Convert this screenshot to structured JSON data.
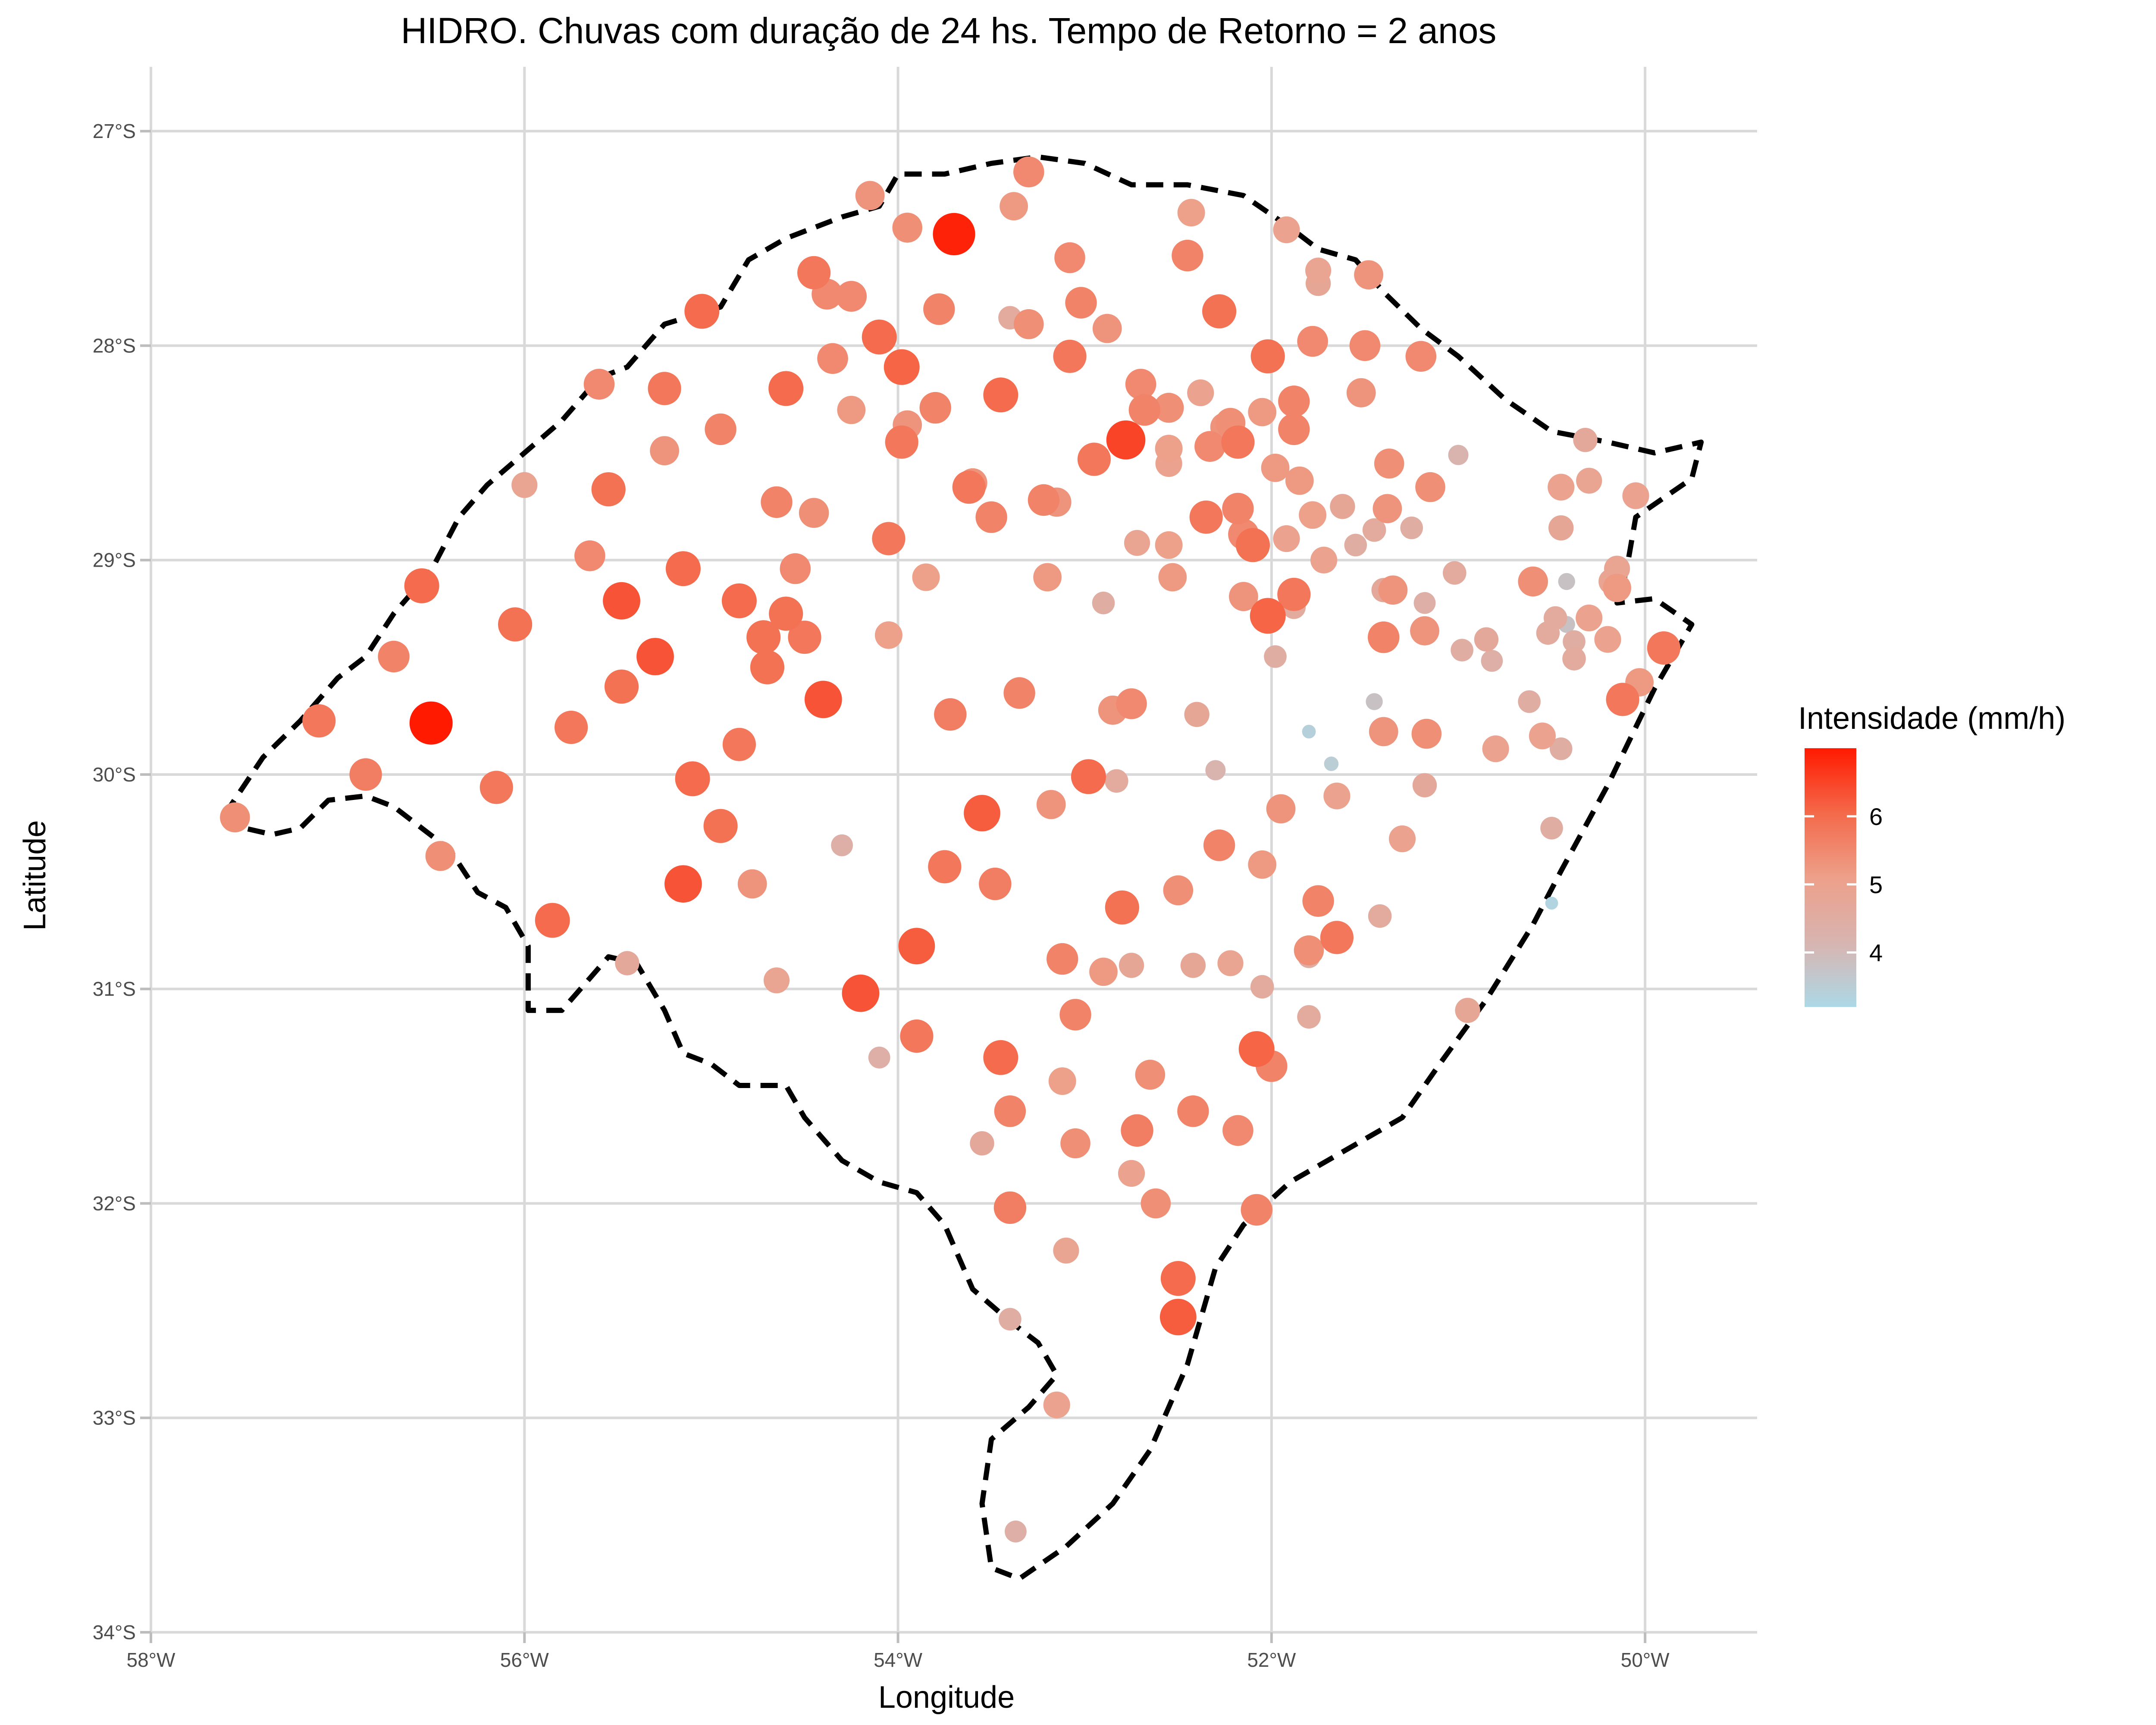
{
  "chart_data": {
    "type": "scatter",
    "title": "HIDRO. Chuvas com duração de 24 hs. Tempo de Retorno = 2 anos",
    "xlabel": "Longitude",
    "ylabel": "Latitude",
    "xlim": [
      -58,
      -49.4
    ],
    "ylim": [
      -34,
      -26.7
    ],
    "x_ticks": [
      -58,
      -56,
      -54,
      -52,
      -50
    ],
    "x_tick_labels": [
      "58°W",
      "56°W",
      "54°W",
      "52°W",
      "50°W"
    ],
    "y_ticks": [
      -27,
      -28,
      -29,
      -30,
      -31,
      -32,
      -33,
      -34
    ],
    "y_tick_labels": [
      "27°S",
      "28°S",
      "29°S",
      "30°S",
      "31°S",
      "32°S",
      "33°S",
      "34°S"
    ],
    "grid": true,
    "legend": {
      "title": "Intensidade (mm/h)",
      "position": "right",
      "min": 3.2,
      "max": 7.0,
      "ticks": [
        4,
        5,
        6
      ],
      "tick_labels": [
        "4",
        "5",
        "6"
      ],
      "colors": [
        "#add8e6",
        "#d8b4b0",
        "#eda08a",
        "#f4694a",
        "#ff1a00"
      ]
    },
    "boundary": [
      [
        -57.6,
        -30.18
      ],
      [
        -57.5,
        -30.25
      ],
      [
        -57.35,
        -30.28
      ],
      [
        -57.2,
        -30.25
      ],
      [
        -57.05,
        -30.12
      ],
      [
        -56.85,
        -30.1
      ],
      [
        -56.7,
        -30.15
      ],
      [
        -56.55,
        -30.25
      ],
      [
        -56.4,
        -30.35
      ],
      [
        -56.25,
        -30.55
      ],
      [
        -56.1,
        -30.62
      ],
      [
        -55.98,
        -30.8
      ],
      [
        -55.98,
        -31.1
      ],
      [
        -55.8,
        -31.1
      ],
      [
        -55.65,
        -30.95
      ],
      [
        -55.55,
        -30.85
      ],
      [
        -55.4,
        -30.88
      ],
      [
        -55.25,
        -31.1
      ],
      [
        -55.15,
        -31.3
      ],
      [
        -55.0,
        -31.35
      ],
      [
        -54.85,
        -31.45
      ],
      [
        -54.6,
        -31.45
      ],
      [
        -54.5,
        -31.6
      ],
      [
        -54.3,
        -31.8
      ],
      [
        -54.1,
        -31.9
      ],
      [
        -53.9,
        -31.95
      ],
      [
        -53.75,
        -32.1
      ],
      [
        -53.6,
        -32.4
      ],
      [
        -53.4,
        -32.55
      ],
      [
        -53.25,
        -32.65
      ],
      [
        -53.15,
        -32.8
      ],
      [
        -53.3,
        -32.95
      ],
      [
        -53.5,
        -33.1
      ],
      [
        -53.55,
        -33.4
      ],
      [
        -53.5,
        -33.7
      ],
      [
        -53.35,
        -33.75
      ],
      [
        -53.1,
        -33.6
      ],
      [
        -52.85,
        -33.4
      ],
      [
        -52.65,
        -33.15
      ],
      [
        -52.45,
        -32.75
      ],
      [
        -52.3,
        -32.3
      ],
      [
        -52.15,
        -32.1
      ],
      [
        -51.9,
        -31.9
      ],
      [
        -51.6,
        -31.75
      ],
      [
        -51.3,
        -31.6
      ],
      [
        -51.1,
        -31.35
      ],
      [
        -50.85,
        -31.05
      ],
      [
        -50.6,
        -30.7
      ],
      [
        -50.45,
        -30.45
      ],
      [
        -50.2,
        -30.05
      ],
      [
        -49.95,
        -29.6
      ],
      [
        -49.75,
        -29.3
      ],
      [
        -49.95,
        -29.18
      ],
      [
        -50.15,
        -29.2
      ],
      [
        -50.1,
        -29.05
      ],
      [
        -50.05,
        -28.8
      ],
      [
        -49.75,
        -28.62
      ],
      [
        -49.7,
        -28.45
      ],
      [
        -49.95,
        -28.5
      ],
      [
        -50.2,
        -28.45
      ],
      [
        -50.5,
        -28.4
      ],
      [
        -50.75,
        -28.25
      ],
      [
        -51.0,
        -28.05
      ],
      [
        -51.2,
        -27.92
      ],
      [
        -51.4,
        -27.75
      ],
      [
        -51.55,
        -27.6
      ],
      [
        -51.75,
        -27.55
      ],
      [
        -51.9,
        -27.45
      ],
      [
        -52.15,
        -27.3
      ],
      [
        -52.45,
        -27.25
      ],
      [
        -52.75,
        -27.25
      ],
      [
        -53.0,
        -27.15
      ],
      [
        -53.25,
        -27.12
      ],
      [
        -53.5,
        -27.15
      ],
      [
        -53.75,
        -27.2
      ],
      [
        -54.0,
        -27.2
      ],
      [
        -54.1,
        -27.35
      ],
      [
        -54.3,
        -27.4
      ],
      [
        -54.6,
        -27.5
      ],
      [
        -54.8,
        -27.6
      ],
      [
        -54.95,
        -27.82
      ],
      [
        -55.25,
        -27.9
      ],
      [
        -55.45,
        -28.1
      ],
      [
        -55.6,
        -28.15
      ],
      [
        -55.8,
        -28.35
      ],
      [
        -56.0,
        -28.5
      ],
      [
        -56.2,
        -28.65
      ],
      [
        -56.35,
        -28.8
      ],
      [
        -56.5,
        -29.05
      ],
      [
        -56.7,
        -29.25
      ],
      [
        -56.85,
        -29.45
      ],
      [
        -57.0,
        -29.55
      ],
      [
        -57.2,
        -29.75
      ],
      [
        -57.4,
        -29.92
      ],
      [
        -57.6,
        -30.18
      ]
    ],
    "points": [
      [
        -57.55,
        -30.2,
        5.4
      ],
      [
        -57.1,
        -29.75,
        5.8
      ],
      [
        -56.85,
        -30.0,
        5.7
      ],
      [
        -56.7,
        -29.45,
        5.6
      ],
      [
        -56.55,
        -29.12,
        6.0
      ],
      [
        -56.5,
        -29.76,
        7.0
      ],
      [
        -56.45,
        -30.38,
        5.4
      ],
      [
        -56.15,
        -30.06,
        5.8
      ],
      [
        -56.05,
        -29.3,
        5.9
      ],
      [
        -56.0,
        -28.65,
        4.9
      ],
      [
        -55.85,
        -30.68,
        6.0
      ],
      [
        -55.75,
        -29.78,
        5.8
      ],
      [
        -55.65,
        -28.98,
        5.5
      ],
      [
        -55.6,
        -28.18,
        5.5
      ],
      [
        -55.55,
        -28.67,
        5.9
      ],
      [
        -55.45,
        -30.88,
        4.7
      ],
      [
        -55.48,
        -29.19,
        6.3
      ],
      [
        -55.48,
        -29.59,
        5.9
      ],
      [
        -55.3,
        -29.45,
        6.3
      ],
      [
        -55.25,
        -28.2,
        5.8
      ],
      [
        -55.25,
        -28.49,
        5.3
      ],
      [
        -55.15,
        -29.04,
        6.0
      ],
      [
        -55.15,
        -30.51,
        6.3
      ],
      [
        -55.1,
        -30.02,
        6.0
      ],
      [
        -55.05,
        -27.84,
        6.0
      ],
      [
        -54.95,
        -28.39,
        5.6
      ],
      [
        -54.95,
        -30.24,
        5.9
      ],
      [
        -54.85,
        -29.19,
        6.0
      ],
      [
        -54.85,
        -29.86,
        5.8
      ],
      [
        -54.78,
        -30.51,
        5.3
      ],
      [
        -54.72,
        -29.36,
        5.9
      ],
      [
        -54.7,
        -29.5,
        5.9
      ],
      [
        -54.65,
        -30.96,
        4.9
      ],
      [
        -54.65,
        -28.73,
        5.6
      ],
      [
        -54.6,
        -28.2,
        6.0
      ],
      [
        -54.6,
        -29.25,
        5.9
      ],
      [
        -54.55,
        -29.04,
        5.5
      ],
      [
        -54.5,
        -29.36,
        5.8
      ],
      [
        -54.45,
        -27.66,
        5.8
      ],
      [
        -54.45,
        -28.78,
        5.4
      ],
      [
        -54.4,
        -29.65,
        6.3
      ],
      [
        -54.38,
        -27.76,
        5.5
      ],
      [
        -54.35,
        -28.06,
        5.5
      ],
      [
        -54.3,
        -30.33,
        4.4
      ],
      [
        -54.25,
        -28.3,
        5.2
      ],
      [
        -54.25,
        -27.77,
        5.5
      ],
      [
        -54.2,
        -31.02,
        6.3
      ],
      [
        -54.15,
        -27.3,
        5.3
      ],
      [
        -54.1,
        -27.96,
        6.0
      ],
      [
        -54.1,
        -31.32,
        4.4
      ],
      [
        -54.05,
        -28.9,
        5.8
      ],
      [
        -54.05,
        -29.35,
        5.1
      ],
      [
        -53.98,
        -28.1,
        6.1
      ],
      [
        -53.98,
        -28.45,
        5.8
      ],
      [
        -53.95,
        -28.37,
        5.3
      ],
      [
        -53.95,
        -27.45,
        5.4
      ],
      [
        -53.9,
        -30.8,
        6.2
      ],
      [
        -53.9,
        -31.22,
        5.8
      ],
      [
        -53.85,
        -29.08,
        5.1
      ],
      [
        -53.8,
        -28.29,
        5.6
      ],
      [
        -53.78,
        -27.83,
        5.6
      ],
      [
        -53.75,
        -30.43,
        5.8
      ],
      [
        -53.72,
        -29.72,
        5.7
      ],
      [
        -53.7,
        -27.48,
        6.9
      ],
      [
        -53.62,
        -28.66,
        5.8
      ],
      [
        -53.6,
        -28.64,
        5.3
      ],
      [
        -53.55,
        -30.18,
        6.2
      ],
      [
        -53.55,
        -31.72,
        4.7
      ],
      [
        -53.5,
        -28.8,
        5.6
      ],
      [
        -53.48,
        -30.51,
        5.7
      ],
      [
        -53.48,
        -30.49,
        3.8
      ],
      [
        -53.45,
        -31.32,
        6.0
      ],
      [
        -53.45,
        -28.23,
        6.0
      ],
      [
        -53.4,
        -32.02,
        5.7
      ],
      [
        -53.4,
        -31.57,
        5.6
      ],
      [
        -53.4,
        -32.54,
        4.5
      ],
      [
        -53.4,
        -27.87,
        4.6
      ],
      [
        -53.38,
        -27.35,
        5.2
      ],
      [
        -53.37,
        -33.53,
        4.4
      ],
      [
        -53.35,
        -29.62,
        5.6
      ],
      [
        -53.3,
        -27.9,
        5.4
      ],
      [
        -53.3,
        -27.19,
        5.5
      ],
      [
        -53.22,
        -28.72,
        5.6
      ],
      [
        -53.2,
        -29.08,
        5.2
      ],
      [
        -53.18,
        -30.14,
        5.3
      ],
      [
        -53.15,
        -28.73,
        5.3
      ],
      [
        -53.15,
        -32.94,
        5.0
      ],
      [
        -53.12,
        -30.86,
        5.6
      ],
      [
        -53.12,
        -31.43,
        5.1
      ],
      [
        -53.1,
        -32.22,
        4.9
      ],
      [
        -53.08,
        -27.59,
        5.5
      ],
      [
        -53.08,
        -28.05,
        5.8
      ],
      [
        -53.05,
        -31.12,
        5.6
      ],
      [
        -53.05,
        -31.72,
        5.4
      ],
      [
        -53.02,
        -27.8,
        5.6
      ],
      [
        -52.98,
        -30.01,
        6.0
      ],
      [
        -52.95,
        -28.53,
        5.8
      ],
      [
        -52.9,
        -30.92,
        5.2
      ],
      [
        -52.9,
        -29.2,
        4.5
      ],
      [
        -52.88,
        -27.92,
        5.3
      ],
      [
        -52.85,
        -29.7,
        5.3
      ],
      [
        -52.83,
        -30.03,
        4.6
      ],
      [
        -52.8,
        -30.62,
        5.9
      ],
      [
        -52.78,
        -28.44,
        6.5
      ],
      [
        -52.75,
        -30.89,
        4.8
      ],
      [
        -52.75,
        -29.67,
        5.5
      ],
      [
        -52.75,
        -31.86,
        5.0
      ],
      [
        -52.72,
        -31.66,
        5.7
      ],
      [
        -52.72,
        -28.92,
        4.9
      ],
      [
        -52.7,
        -28.18,
        5.5
      ],
      [
        -52.68,
        -28.3,
        5.6
      ],
      [
        -52.65,
        -31.4,
        5.4
      ],
      [
        -52.62,
        -32.0,
        5.4
      ],
      [
        -52.55,
        -28.29,
        5.4
      ],
      [
        -52.55,
        -28.48,
        5.1
      ],
      [
        -52.55,
        -28.55,
        5.0
      ],
      [
        -52.55,
        -28.93,
        5.1
      ],
      [
        -52.53,
        -29.08,
        5.2
      ],
      [
        -52.5,
        -30.54,
        5.4
      ],
      [
        -52.5,
        -32.35,
        6.0
      ],
      [
        -52.5,
        -32.53,
        6.2
      ],
      [
        -52.45,
        -27.58,
        5.6
      ],
      [
        -52.43,
        -27.38,
        5.1
      ],
      [
        -52.42,
        -30.89,
        4.8
      ],
      [
        -52.42,
        -31.57,
        5.6
      ],
      [
        -52.4,
        -29.72,
        4.8
      ],
      [
        -52.38,
        -28.22,
        5.0
      ],
      [
        -52.35,
        -28.8,
        5.8
      ],
      [
        -52.33,
        -28.47,
        5.5
      ],
      [
        -52.3,
        -29.98,
        4.2
      ],
      [
        -52.28,
        -27.84,
        5.9
      ],
      [
        -52.28,
        -30.33,
        5.6
      ],
      [
        -52.25,
        -28.38,
        5.3
      ],
      [
        -52.22,
        -28.36,
        5.4
      ],
      [
        -52.22,
        -30.88,
        4.9
      ],
      [
        -52.18,
        -28.45,
        5.8
      ],
      [
        -52.18,
        -28.76,
        5.6
      ],
      [
        -52.18,
        -31.66,
        5.5
      ],
      [
        -52.15,
        -29.17,
        5.3
      ],
      [
        -52.15,
        -28.88,
        5.5
      ],
      [
        -52.1,
        -28.93,
        5.9
      ],
      [
        -52.08,
        -31.28,
        6.1
      ],
      [
        -52.08,
        -32.03,
        5.6
      ],
      [
        -52.05,
        -30.42,
        5.2
      ],
      [
        -52.05,
        -30.99,
        4.6
      ],
      [
        -52.05,
        -28.31,
        5.2
      ],
      [
        -52.02,
        -29.26,
        6.1
      ],
      [
        -52.02,
        -28.05,
        5.9
      ],
      [
        -52.0,
        -31.36,
        5.6
      ],
      [
        -51.98,
        -28.57,
        5.2
      ],
      [
        -51.98,
        -29.45,
        4.5
      ],
      [
        -51.95,
        -30.16,
        5.3
      ],
      [
        -51.92,
        -27.46,
        5.0
      ],
      [
        -51.92,
        -28.9,
        5.0
      ],
      [
        -51.88,
        -28.26,
        5.6
      ],
      [
        -51.88,
        -28.39,
        5.6
      ],
      [
        -51.88,
        -29.16,
        5.8
      ],
      [
        -51.88,
        -29.22,
        4.6
      ],
      [
        -51.85,
        -28.63,
        5.2
      ],
      [
        -51.8,
        -30.85,
        4.5
      ],
      [
        -51.8,
        -29.8,
        3.4
      ],
      [
        -51.8,
        -30.82,
        5.4
      ],
      [
        -51.8,
        -31.13,
        4.6
      ],
      [
        -51.78,
        -27.98,
        5.5
      ],
      [
        -51.78,
        -28.79,
        5.1
      ],
      [
        -51.75,
        -27.65,
        4.9
      ],
      [
        -51.75,
        -27.71,
        4.8
      ],
      [
        -51.75,
        -30.59,
        5.6
      ],
      [
        -51.72,
        -29.0,
        5.0
      ],
      [
        -51.68,
        -29.95,
        3.5
      ],
      [
        -51.65,
        -30.1,
        5.0
      ],
      [
        -51.65,
        -30.76,
        5.8
      ],
      [
        -51.62,
        -28.75,
        4.8
      ],
      [
        -51.55,
        -28.93,
        4.5
      ],
      [
        -51.52,
        -28.22,
        5.3
      ],
      [
        -51.5,
        -28.0,
        5.5
      ],
      [
        -51.48,
        -27.67,
        5.3
      ],
      [
        -51.45,
        -28.86,
        4.6
      ],
      [
        -51.45,
        -29.66,
        3.8
      ],
      [
        -51.42,
        -30.66,
        4.6
      ],
      [
        -51.4,
        -29.8,
        5.3
      ],
      [
        -51.4,
        -29.14,
        4.7
      ],
      [
        -51.4,
        -29.36,
        5.6
      ],
      [
        -51.38,
        -28.76,
        5.3
      ],
      [
        -51.37,
        -28.55,
        5.4
      ],
      [
        -51.35,
        -29.14,
        5.3
      ],
      [
        -51.3,
        -30.3,
        5.0
      ],
      [
        -51.25,
        -28.85,
        4.5
      ],
      [
        -51.2,
        -28.05,
        5.5
      ],
      [
        -51.18,
        -29.2,
        4.4
      ],
      [
        -51.18,
        -29.33,
        5.3
      ],
      [
        -51.18,
        -30.05,
        4.7
      ],
      [
        -51.17,
        -29.81,
        5.4
      ],
      [
        -51.15,
        -28.66,
        5.4
      ],
      [
        -51.0,
        -28.51,
        4.2
      ],
      [
        -51.02,
        -29.06,
        4.6
      ],
      [
        -50.98,
        -29.42,
        4.5
      ],
      [
        -50.95,
        -31.1,
        4.8
      ],
      [
        -50.85,
        -29.37,
        4.7
      ],
      [
        -50.82,
        -29.47,
        4.4
      ],
      [
        -50.8,
        -29.88,
        5.0
      ],
      [
        -50.62,
        -29.66,
        4.5
      ],
      [
        -50.6,
        -29.1,
        5.4
      ],
      [
        -50.55,
        -29.82,
        5.0
      ],
      [
        -50.52,
        -29.34,
        4.6
      ],
      [
        -50.5,
        -30.6,
        3.3
      ],
      [
        -50.5,
        -30.25,
        4.5
      ],
      [
        -50.48,
        -29.27,
        4.6
      ],
      [
        -50.45,
        -28.85,
        4.8
      ],
      [
        -50.45,
        -28.66,
        5.0
      ],
      [
        -50.45,
        -29.88,
        4.5
      ],
      [
        -50.42,
        -29.1,
        3.8
      ],
      [
        -50.42,
        -29.3,
        3.8
      ],
      [
        -50.38,
        -29.38,
        4.5
      ],
      [
        -50.38,
        -29.46,
        4.6
      ],
      [
        -50.32,
        -28.44,
        4.7
      ],
      [
        -50.3,
        -28.63,
        4.9
      ],
      [
        -50.3,
        -29.27,
        5.0
      ],
      [
        -50.2,
        -29.37,
        5.0
      ],
      [
        -50.18,
        -29.1,
        4.9
      ],
      [
        -50.15,
        -29.04,
        4.9
      ],
      [
        -50.15,
        -29.13,
        5.2
      ],
      [
        -50.12,
        -29.65,
        5.8
      ],
      [
        -50.05,
        -28.7,
        5.0
      ],
      [
        -50.03,
        -29.57,
        5.2
      ],
      [
        -49.9,
        -29.41,
        5.8
      ]
    ]
  }
}
